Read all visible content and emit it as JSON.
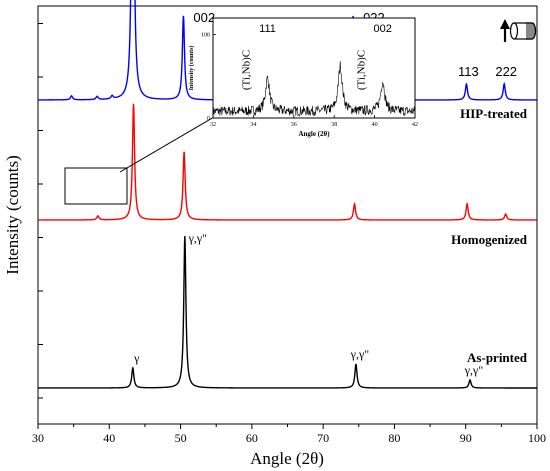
{
  "chart_data": {
    "type": "line",
    "xlabel": "Angle (2θ)",
    "ylabel": "Intensity (counts)",
    "xlim": [
      30,
      100
    ],
    "x_ticks": [
      "30",
      "40",
      "50",
      "60",
      "70",
      "80",
      "90",
      "100"
    ],
    "grid": false,
    "offset_series": true,
    "series": [
      {
        "name": "HIP-treated",
        "color": "#0000ff",
        "baseline": 0.8,
        "peaks": [
          {
            "x": 34.7,
            "h": 0.01
          },
          {
            "x": 38.3,
            "h": 0.008
          },
          {
            "x": 40.4,
            "h": 0.008
          },
          {
            "x": 43.3,
            "h": 1.0
          },
          {
            "x": 50.4,
            "h": 0.21
          },
          {
            "x": 74.2,
            "h": 0.21
          },
          {
            "x": 90.1,
            "h": 0.04
          },
          {
            "x": 95.4,
            "h": 0.04
          }
        ]
      },
      {
        "name": "Homogenized",
        "color": "#ff0000",
        "baseline": 0.5,
        "peaks": [
          {
            "x": 38.4,
            "h": 0.01
          },
          {
            "x": 43.4,
            "h": 0.29
          },
          {
            "x": 50.5,
            "h": 0.17
          },
          {
            "x": 74.4,
            "h": 0.04
          },
          {
            "x": 90.2,
            "h": 0.04
          },
          {
            "x": 95.6,
            "h": 0.015
          }
        ]
      },
      {
        "name": "As-printed",
        "color": "#000000",
        "baseline": 0.08,
        "peaks": [
          {
            "x": 43.3,
            "h": 0.05
          },
          {
            "x": 50.6,
            "h": 0.38
          },
          {
            "x": 74.6,
            "h": 0.06
          },
          {
            "x": 90.6,
            "h": 0.02
          }
        ]
      }
    ],
    "peak_labels": [
      {
        "text": "111",
        "series": 0,
        "x": 43.3
      },
      {
        "text": "002",
        "series": 0,
        "x": 50.4
      },
      {
        "text": "022",
        "series": 0,
        "x": 74.2
      },
      {
        "text": "113",
        "series": 0,
        "x": 90.1
      },
      {
        "text": "222",
        "series": 0,
        "x": 95.4
      },
      {
        "text": "γ",
        "series": 2,
        "x": 43.3
      },
      {
        "text": "γ,γ\"",
        "series": 2,
        "x": 50.6
      },
      {
        "text": "γ,γ\"",
        "series": 2,
        "x": 74.6
      },
      {
        "text": "γ,γ\"",
        "series": 2,
        "x": 90.6
      }
    ],
    "inset": {
      "xlabel": "Angle (2θ)",
      "ylabel": "Intensity (counts)",
      "xlim": [
        32,
        42
      ],
      "ylim": [
        0,
        120
      ],
      "x_ticks": [
        "32",
        "34",
        "36",
        "38",
        "40",
        "42"
      ],
      "y_ticks": [
        "0",
        "100"
      ],
      "noise_level": 6,
      "background": 8,
      "peaks": [
        {
          "x": 34.7,
          "h": 40,
          "label_top": "111",
          "label_side": "(Ti,Nb)C"
        },
        {
          "x": 38.3,
          "h": 55
        },
        {
          "x": 40.4,
          "h": 36,
          "label_top": "002",
          "label_side": "(Ti,Nb)C"
        }
      ]
    }
  }
}
